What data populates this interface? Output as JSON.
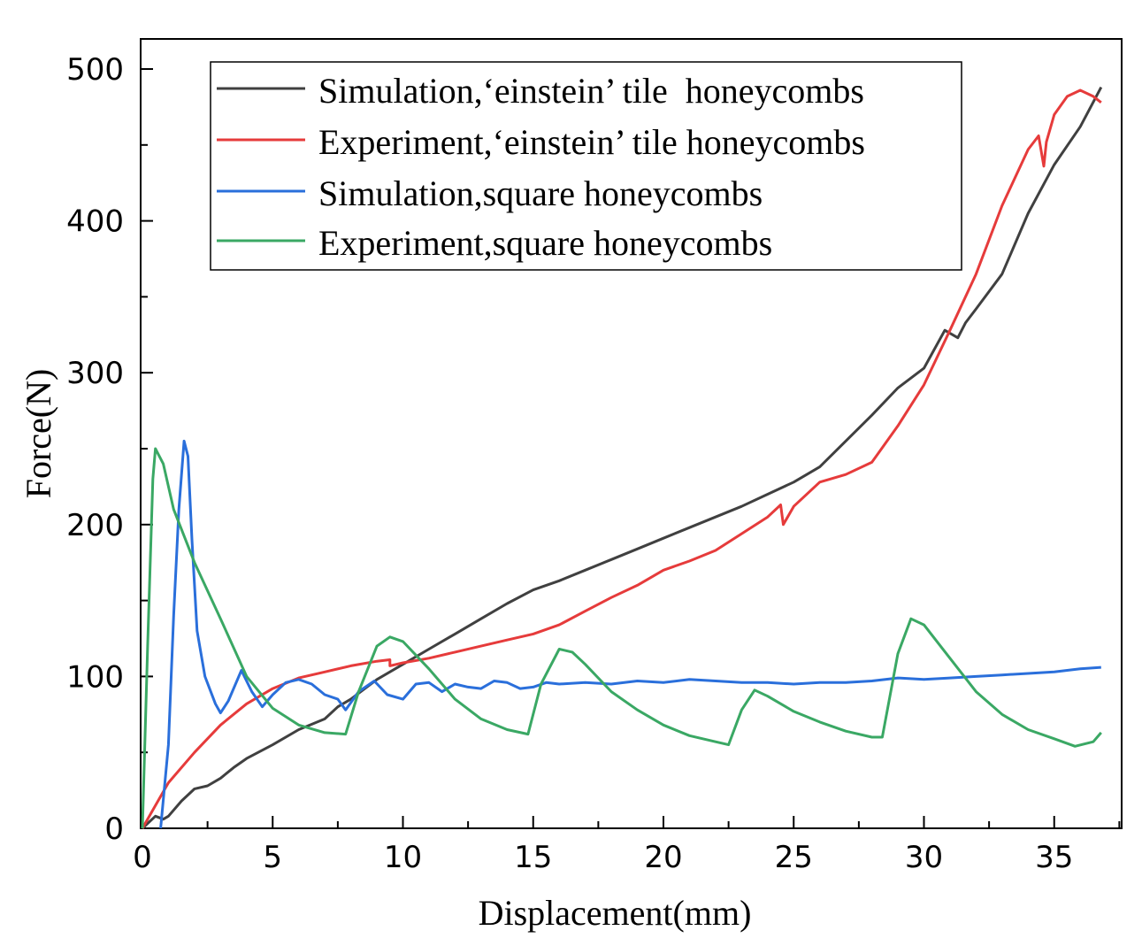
{
  "chart_data": {
    "type": "line",
    "title": "",
    "xlabel": "Displacement(mm)",
    "ylabel": "Force(N)",
    "xlim": [
      0,
      37.5
    ],
    "ylim": [
      0,
      500
    ],
    "xticks": [
      0,
      5,
      10,
      15,
      20,
      25,
      30,
      35
    ],
    "yticks": [
      0,
      100,
      200,
      300,
      400,
      500
    ],
    "xtick_labels": [
      "0",
      "5",
      "10",
      "15",
      "20",
      "25",
      "30",
      "35"
    ],
    "ytick_labels": [
      "0",
      "100",
      "200",
      "300",
      "400",
      "500"
    ],
    "grid": false,
    "legend_position": "top-center",
    "series": [
      {
        "name": "Simulation,‘einstein’ tile  honeycombs",
        "color": "#404040",
        "x": [
          0,
          0.5,
          0.8,
          1.0,
          1.5,
          2.0,
          2.5,
          3.0,
          3.5,
          4.0,
          5.0,
          6.0,
          7.0,
          7.5,
          8.0,
          9.0,
          10.0,
          11.0,
          12.0,
          13.0,
          14.0,
          15.0,
          16.0,
          17.0,
          18.0,
          19.0,
          20.0,
          21.0,
          22.0,
          23.0,
          24.0,
          25.0,
          26.0,
          27.0,
          28.0,
          29.0,
          30.0,
          30.8,
          31.0,
          31.3,
          31.6,
          32.0,
          33.0,
          34.0,
          35.0,
          36.0,
          36.8
        ],
        "y": [
          0,
          8,
          6,
          8,
          18,
          26,
          28,
          33,
          40,
          46,
          55,
          65,
          72,
          80,
          85,
          98,
          108,
          118,
          128,
          138,
          148,
          157,
          163,
          170,
          177,
          184,
          191,
          198,
          205,
          212,
          220,
          228,
          238,
          255,
          272,
          290,
          303,
          328,
          326,
          323,
          333,
          342,
          365,
          405,
          437,
          462,
          488
        ]
      },
      {
        "name": "Experiment,‘einstein’ tile honeycombs",
        "color": "#e63b3b",
        "x": [
          0,
          0.5,
          1.0,
          2.0,
          3.0,
          4.0,
          5.0,
          6.0,
          7.0,
          8.0,
          9.0,
          9.5,
          9.5,
          10.0,
          11.0,
          12.0,
          13.0,
          14.0,
          15.0,
          16.0,
          17.0,
          18.0,
          19.0,
          20.0,
          21.0,
          22.0,
          23.0,
          24.0,
          24.5,
          24.6,
          25.0,
          26.0,
          27.0,
          28.0,
          29.0,
          30.0,
          31.0,
          32.0,
          33.0,
          34.0,
          34.4,
          34.6,
          34.7,
          35.0,
          35.5,
          36.0,
          36.5,
          36.8
        ],
        "y": [
          0,
          15,
          30,
          50,
          68,
          82,
          92,
          99,
          103,
          107,
          110,
          111,
          107,
          109,
          112,
          116,
          120,
          124,
          128,
          134,
          143,
          152,
          160,
          170,
          176,
          183,
          194,
          205,
          213,
          200,
          212,
          228,
          233,
          241,
          265,
          292,
          328,
          365,
          410,
          447,
          456,
          436,
          452,
          470,
          482,
          486,
          482,
          478
        ]
      },
      {
        "name": "Simulation,square honeycombs",
        "color": "#2a6fdb",
        "x": [
          0.7,
          1.0,
          1.2,
          1.4,
          1.6,
          1.75,
          1.9,
          2.1,
          2.4,
          2.8,
          3.0,
          3.3,
          3.8,
          4.2,
          4.6,
          5.0,
          5.5,
          6.0,
          6.5,
          7.0,
          7.5,
          7.8,
          8.3,
          8.9,
          9.4,
          10.0,
          10.5,
          11.0,
          11.5,
          12.0,
          12.5,
          13.0,
          13.5,
          14.0,
          14.5,
          15.0,
          15.5,
          16.0,
          17.0,
          18.0,
          19.0,
          20.0,
          21.0,
          22.0,
          23.0,
          24.0,
          25.0,
          26.0,
          27.0,
          28.0,
          29.0,
          30.0,
          31.0,
          32.0,
          33.0,
          34.0,
          35.0,
          36.0,
          36.8
        ],
        "y": [
          0,
          55,
          140,
          210,
          255,
          245,
          190,
          130,
          100,
          82,
          76,
          84,
          104,
          90,
          80,
          88,
          96,
          98,
          95,
          88,
          85,
          78,
          90,
          97,
          88,
          85,
          95,
          96,
          90,
          95,
          93,
          92,
          97,
          96,
          92,
          93,
          96,
          95,
          96,
          95,
          97,
          96,
          98,
          97,
          96,
          96,
          95,
          96,
          96,
          97,
          99,
          98,
          99,
          100,
          101,
          102,
          103,
          105,
          106
        ]
      },
      {
        "name": "Experiment,square honeycombs",
        "color": "#3aa864",
        "x": [
          0,
          0.2,
          0.4,
          0.5,
          0.8,
          1.2,
          2.0,
          3.0,
          4.0,
          5.0,
          6.0,
          7.0,
          7.8,
          8.3,
          9.0,
          9.5,
          10.0,
          11.0,
          12.0,
          13.0,
          14.0,
          14.8,
          15.3,
          16.0,
          16.5,
          17.0,
          18.0,
          19.0,
          20.0,
          21.0,
          22.0,
          22.5,
          23.0,
          23.5,
          24.0,
          25.0,
          26.0,
          27.0,
          28.0,
          28.4,
          29.0,
          29.5,
          30.0,
          31.0,
          32.0,
          33.0,
          34.0,
          35.0,
          35.8,
          36.5,
          36.8
        ],
        "y": [
          0,
          120,
          230,
          250,
          240,
          210,
          175,
          138,
          100,
          79,
          68,
          63,
          62,
          90,
          120,
          126,
          123,
          105,
          85,
          72,
          65,
          62,
          95,
          118,
          116,
          108,
          90,
          78,
          68,
          61,
          57,
          55,
          78,
          91,
          87,
          77,
          70,
          64,
          60,
          60,
          115,
          138,
          134,
          112,
          90,
          75,
          65,
          59,
          54,
          57,
          63
        ]
      }
    ]
  }
}
